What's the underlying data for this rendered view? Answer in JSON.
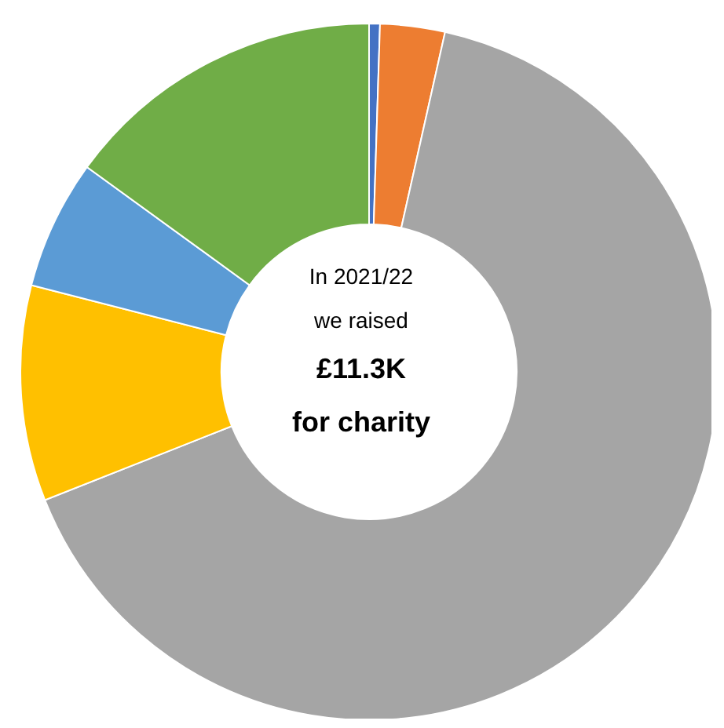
{
  "chart_data": {
    "type": "donut",
    "categories": [
      null,
      null,
      null,
      null,
      null,
      null
    ],
    "values": [
      0.5,
      3,
      65.5,
      10,
      6,
      15
    ],
    "colors": [
      "#4472c4",
      "#ed7d31",
      "#a5a5a5",
      "#ffc000",
      "#5b9bd5",
      "#70ad47"
    ],
    "annotations": [
      "In 2021/22",
      "we raised",
      "£11.3K",
      "for charity"
    ],
    "legend": false
  }
}
